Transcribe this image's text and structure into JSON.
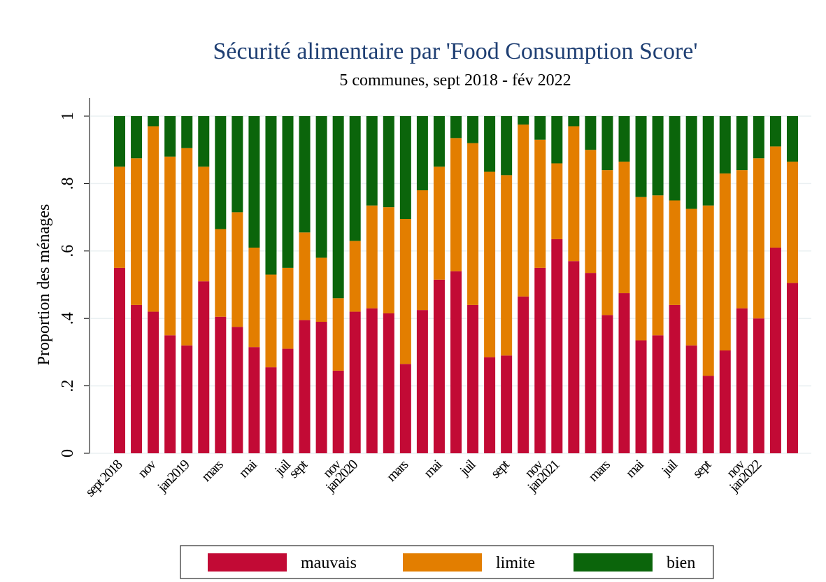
{
  "chart_data": {
    "type": "bar",
    "stacked": true,
    "title": "Sécurité alimentaire par 'Food Consumption Score'",
    "subtitle": "5 communes, sept 2018 - fév 2022",
    "y_label": "Proportion des ménages",
    "categories": [
      "sept 2018",
      null,
      "nov",
      null,
      "jan2019",
      null,
      "mars",
      null,
      "mai",
      null,
      "juil",
      "sept",
      null,
      "nov",
      "jan2020",
      null,
      null,
      "mars",
      null,
      "mai",
      null,
      "juil",
      null,
      "sept",
      null,
      "nov",
      "jan2021",
      null,
      null,
      "mars",
      null,
      "mai",
      null,
      "juil",
      null,
      "sept",
      null,
      "nov",
      "jan2022",
      null,
      null
    ],
    "series": [
      {
        "name": "mauvais",
        "color": "#c20a35",
        "values": [
          0.55,
          0.44,
          0.42,
          0.35,
          0.32,
          0.51,
          0.405,
          0.375,
          0.315,
          0.255,
          0.31,
          0.395,
          0.39,
          0.245,
          0.42,
          0.43,
          0.415,
          0.265,
          0.425,
          0.515,
          0.54,
          0.44,
          0.285,
          0.29,
          0.465,
          0.55,
          0.635,
          0.57,
          0.535,
          0.41,
          0.475,
          0.335,
          0.35,
          0.44,
          0.32,
          0.23,
          0.305,
          0.43,
          0.4,
          0.61,
          0.505
        ]
      },
      {
        "name": "limite",
        "color": "#e37e00",
        "values": [
          0.3,
          0.435,
          0.55,
          0.53,
          0.585,
          0.34,
          0.26,
          0.34,
          0.295,
          0.275,
          0.24,
          0.26,
          0.19,
          0.215,
          0.21,
          0.305,
          0.315,
          0.43,
          0.355,
          0.335,
          0.395,
          0.48,
          0.55,
          0.535,
          0.51,
          0.38,
          0.225,
          0.4,
          0.365,
          0.43,
          0.39,
          0.425,
          0.415,
          0.31,
          0.405,
          0.505,
          0.525,
          0.41,
          0.475,
          0.3,
          0.36
        ]
      },
      {
        "name": "bien",
        "color": "#0b650b",
        "values": [
          0.15,
          0.125,
          0.03,
          0.12,
          0.095,
          0.15,
          0.335,
          0.285,
          0.39,
          0.47,
          0.45,
          0.345,
          0.42,
          0.54,
          0.37,
          0.265,
          0.27,
          0.305,
          0.22,
          0.15,
          0.065,
          0.08,
          0.165,
          0.175,
          0.025,
          0.07,
          0.14,
          0.03,
          0.1,
          0.16,
          0.135,
          0.24,
          0.235,
          0.25,
          0.275,
          0.265,
          0.17,
          0.16,
          0.125,
          0.09,
          0.135
        ]
      }
    ],
    "ylim": [
      0,
      1
    ],
    "yticks": [
      0,
      {
        "value": 0.2,
        "label": ".2"
      },
      {
        "value": 0.4,
        "label": ".4"
      },
      {
        "value": 0.6,
        "label": ".6"
      },
      {
        "value": 0.8,
        "label": ".8"
      },
      1
    ],
    "grid": true,
    "legend": "bottom"
  }
}
